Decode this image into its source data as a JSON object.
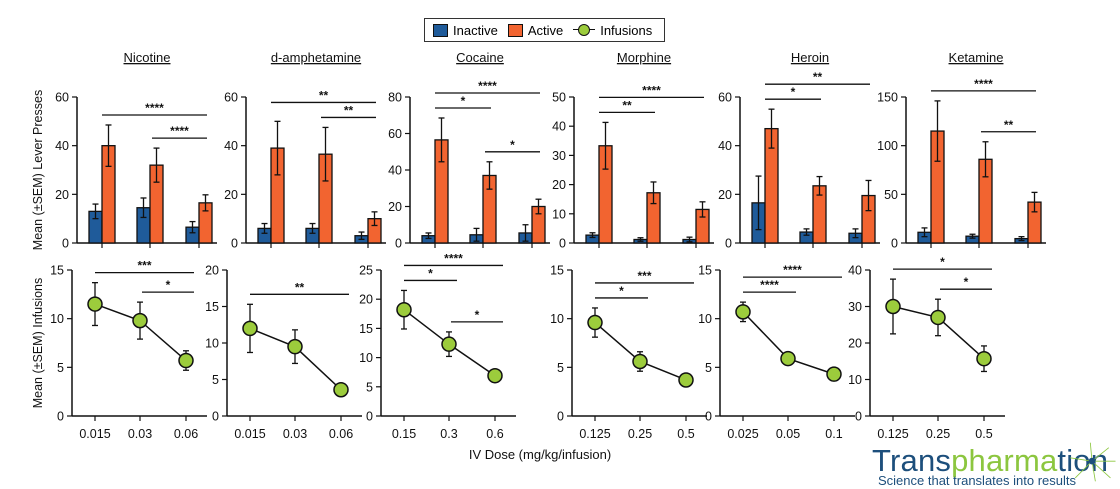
{
  "legend": {
    "inactive": "Inactive",
    "active": "Active",
    "infusions": "Infusions"
  },
  "colors": {
    "inactive": "#1f5b9a",
    "active": "#f26430",
    "infusions": "#9ccc3c",
    "line": "#111111"
  },
  "labels": {
    "top_ylabel": "Mean (±SEM) Lever Presses",
    "bottom_ylabel": "Mean (±SEM) Infusions",
    "xlabel": "IV Dose (mg/kg/infusion)"
  },
  "logo": {
    "name_a": "Trans",
    "name_b": "pharma",
    "name_c": "tion",
    "tagline": "Science that translates into results"
  },
  "chart_data": [
    {
      "type": "bar",
      "title": "Nicotine",
      "categories": [
        "0.015",
        "0.03",
        "0.06"
      ],
      "ylim": [
        0,
        60
      ],
      "yticks": [
        "0",
        "20",
        "40",
        "60"
      ],
      "series": [
        {
          "name": "Inactive",
          "values": [
            13,
            14.5,
            6.5
          ],
          "sem": [
            3,
            4,
            2.3
          ]
        },
        {
          "name": "Active",
          "values": [
            40,
            32,
            16.5
          ],
          "sem": [
            8.5,
            7,
            3.3
          ]
        }
      ],
      "significance": [
        {
          "from": 1,
          "to": 2,
          "label": "****"
        },
        {
          "from": 0,
          "to": 2,
          "label": "****"
        }
      ]
    },
    {
      "type": "bar",
      "title": "d-amphetamine",
      "categories": [
        "0.015",
        "0.03",
        "0.06"
      ],
      "ylim": [
        0,
        60
      ],
      "yticks": [
        "0",
        "20",
        "40",
        "60"
      ],
      "series": [
        {
          "name": "Inactive",
          "values": [
            6,
            6,
            3
          ],
          "sem": [
            2,
            2,
            1.5
          ]
        },
        {
          "name": "Active",
          "values": [
            39,
            36.5,
            10
          ],
          "sem": [
            11,
            11,
            2.8
          ]
        }
      ],
      "significance": [
        {
          "from": 1,
          "to": 2,
          "label": "**"
        },
        {
          "from": 0,
          "to": 2,
          "label": "**"
        }
      ]
    },
    {
      "type": "bar",
      "title": "Cocaine",
      "categories": [
        "0.15",
        "0.3",
        "0.6"
      ],
      "ylim": [
        0,
        80
      ],
      "yticks": [
        "0",
        "20",
        "40",
        "60",
        "80"
      ],
      "series": [
        {
          "name": "Inactive",
          "values": [
            4,
            4.5,
            5.5
          ],
          "sem": [
            1.5,
            3.5,
            4.5
          ]
        },
        {
          "name": "Active",
          "values": [
            56.5,
            37,
            20
          ],
          "sem": [
            12,
            7.5,
            4
          ]
        }
      ],
      "significance": [
        {
          "from": 1,
          "to": 2,
          "label": "*"
        },
        {
          "from": 0,
          "to": 1,
          "label": "*"
        },
        {
          "from": 0,
          "to": 2,
          "label": "****"
        }
      ]
    },
    {
      "type": "bar",
      "title": "Morphine",
      "categories": [
        "0.125",
        "0.25",
        "0.5"
      ],
      "ylim": [
        0,
        50
      ],
      "yticks": [
        "0",
        "10",
        "20",
        "30",
        "40",
        "50"
      ],
      "series": [
        {
          "name": "Inactive",
          "values": [
            2.7,
            1.2,
            1.2
          ],
          "sem": [
            0.8,
            0.6,
            0.8
          ]
        },
        {
          "name": "Active",
          "values": [
            33.3,
            17.2,
            11.5
          ],
          "sem": [
            8,
            3.7,
            2.6
          ]
        }
      ],
      "significance": [
        {
          "from": 0,
          "to": 1,
          "label": "**"
        },
        {
          "from": 0,
          "to": 2,
          "label": "****"
        }
      ]
    },
    {
      "type": "bar",
      "title": "Heroin",
      "categories": [
        "0.025",
        "0.05",
        "0.1"
      ],
      "ylim": [
        0,
        60
      ],
      "yticks": [
        "0",
        "20",
        "40",
        "60"
      ],
      "series": [
        {
          "name": "Inactive",
          "values": [
            16.5,
            4.5,
            4
          ],
          "sem": [
            11,
            1.3,
            1.8
          ]
        },
        {
          "name": "Active",
          "values": [
            47,
            23.5,
            19.5
          ],
          "sem": [
            8,
            3.8,
            6.2
          ]
        }
      ],
      "significance": [
        {
          "from": 0,
          "to": 1,
          "label": "*"
        },
        {
          "from": 0,
          "to": 2,
          "label": "**"
        }
      ]
    },
    {
      "type": "bar",
      "title": "Ketamine",
      "categories": [
        "0.125",
        "0.25",
        "0.5"
      ],
      "ylim": [
        0,
        150
      ],
      "yticks": [
        "0",
        "50",
        "100",
        "150"
      ],
      "series": [
        {
          "name": "Inactive",
          "values": [
            11,
            7,
            4.5
          ],
          "sem": [
            4.5,
            2,
            2
          ]
        },
        {
          "name": "Active",
          "values": [
            115,
            86,
            42
          ],
          "sem": [
            31,
            18,
            10
          ]
        }
      ],
      "significance": [
        {
          "from": 1,
          "to": 2,
          "label": "**"
        },
        {
          "from": 0,
          "to": 2,
          "label": "****"
        }
      ]
    },
    {
      "type": "line",
      "categories": [
        "0.015",
        "0.03",
        "0.06"
      ],
      "ylim": [
        0,
        15
      ],
      "yticks": [
        "0",
        "5",
        "10",
        "15"
      ],
      "series": [
        {
          "name": "Infusions",
          "values": [
            11.5,
            9.8,
            5.7
          ],
          "sem": [
            2.2,
            1.9,
            1
          ]
        }
      ],
      "significance": [
        {
          "from": 1,
          "to": 2,
          "label": "*"
        },
        {
          "from": 0,
          "to": 2,
          "label": "***"
        }
      ]
    },
    {
      "type": "line",
      "categories": [
        "0.015",
        "0.03",
        "0.06"
      ],
      "ylim": [
        0,
        20
      ],
      "yticks": [
        "0",
        "5",
        "10",
        "15",
        "20"
      ],
      "series": [
        {
          "name": "Infusions",
          "values": [
            12,
            9.5,
            3.6
          ],
          "sem": [
            3.3,
            2.3,
            0.8
          ]
        }
      ],
      "significance": [
        {
          "from": 0,
          "to": 2,
          "label": "**"
        }
      ]
    },
    {
      "type": "line",
      "categories": [
        "0.15",
        "0.3",
        "0.6"
      ],
      "ylim": [
        0,
        25
      ],
      "yticks": [
        "0",
        "5",
        "10",
        "15",
        "20",
        "25"
      ],
      "series": [
        {
          "name": "Infusions",
          "values": [
            18.2,
            12.3,
            6.9
          ],
          "sem": [
            3.3,
            2.1,
            0.8
          ]
        }
      ],
      "significance": [
        {
          "from": 1,
          "to": 2,
          "label": "*"
        },
        {
          "from": 0,
          "to": 1,
          "label": "*"
        },
        {
          "from": 0,
          "to": 2,
          "label": "****"
        }
      ]
    },
    {
      "type": "line",
      "categories": [
        "0.125",
        "0.25",
        "0.5"
      ],
      "ylim": [
        0,
        15
      ],
      "yticks": [
        "0",
        "5",
        "10",
        "15"
      ],
      "series": [
        {
          "name": "Infusions",
          "values": [
            9.6,
            5.6,
            3.7
          ],
          "sem": [
            1.5,
            1,
            0.5
          ]
        }
      ],
      "significance": [
        {
          "from": 0,
          "to": 1,
          "label": "*"
        },
        {
          "from": 0,
          "to": 2,
          "label": "***"
        }
      ]
    },
    {
      "type": "line",
      "categories": [
        "0.025",
        "0.05",
        "0.1"
      ],
      "ylim": [
        0,
        15
      ],
      "yticks": [
        "0",
        "5",
        "10",
        "15"
      ],
      "series": [
        {
          "name": "Infusions",
          "values": [
            10.7,
            5.9,
            4.3
          ],
          "sem": [
            1,
            0.3,
            0.3
          ]
        }
      ],
      "significance": [
        {
          "from": 0,
          "to": 1,
          "label": "****"
        },
        {
          "from": 0,
          "to": 2,
          "label": "****"
        }
      ]
    },
    {
      "type": "line",
      "categories": [
        "0.125",
        "0.25",
        "0.5"
      ],
      "ylim": [
        0,
        40
      ],
      "yticks": [
        "0",
        "10",
        "20",
        "30",
        "40"
      ],
      "series": [
        {
          "name": "Infusions",
          "values": [
            30,
            27,
            15.7
          ],
          "sem": [
            7.5,
            5,
            3.5
          ]
        }
      ],
      "significance": [
        {
          "from": 1,
          "to": 2,
          "label": "*"
        },
        {
          "from": 0,
          "to": 2,
          "label": "*"
        }
      ]
    }
  ]
}
